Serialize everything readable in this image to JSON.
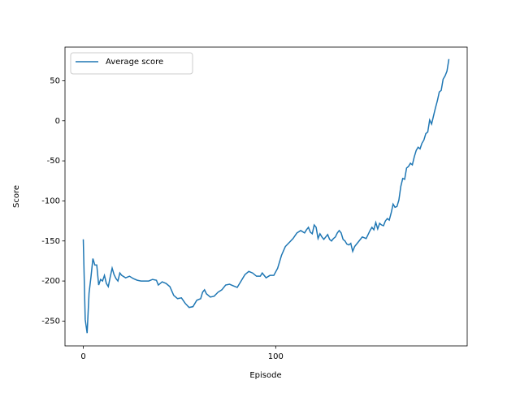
{
  "chart_data": {
    "type": "line",
    "x_label": "Episode",
    "y_label": "Score",
    "x": [
      0,
      1,
      2,
      3,
      4,
      5,
      6,
      7,
      8,
      9,
      10,
      11,
      12,
      13,
      14,
      15,
      16,
      17,
      18,
      19,
      20,
      22,
      24,
      26,
      28,
      30,
      34,
      36,
      38,
      39,
      41,
      43,
      45,
      47,
      49,
      51,
      53,
      55,
      57,
      59,
      61,
      62,
      63,
      64,
      66,
      68,
      70,
      72,
      74,
      76,
      78,
      80,
      82,
      84,
      86,
      88,
      90,
      92,
      93,
      95,
      97,
      99,
      101,
      103,
      105,
      107,
      109,
      111,
      113,
      115,
      116,
      117,
      118,
      119,
      120,
      121,
      122,
      123,
      124,
      125,
      126,
      127,
      128,
      129,
      130,
      131,
      132,
      133,
      134,
      135,
      136,
      137,
      138,
      139,
      140,
      141,
      143,
      145,
      147,
      149,
      150,
      151,
      152,
      153,
      154,
      155,
      156,
      157,
      158,
      159,
      160,
      161,
      162,
      163,
      164,
      165,
      166,
      167,
      168,
      169,
      170,
      171,
      172,
      173,
      174,
      175,
      176,
      177,
      178,
      179,
      180,
      181,
      182,
      183,
      184,
      185,
      186,
      187,
      188,
      189,
      190
    ],
    "series": [
      {
        "name": "Average score",
        "color": "#1f77b4",
        "values": [
          -148,
          -248,
          -265,
          -215,
          -195,
          -172,
          -180,
          -180,
          -205,
          -198,
          -200,
          -193,
          -203,
          -207,
          -195,
          -184,
          -192,
          -197,
          -200,
          -190,
          -193,
          -196,
          -194,
          -197,
          -199,
          -200,
          -200,
          -198,
          -199,
          -205,
          -201,
          -203,
          -207,
          -218,
          -222,
          -221,
          -228,
          -233,
          -232,
          -224,
          -222,
          -214,
          -211,
          -216,
          -220,
          -219,
          -214,
          -211,
          -205,
          -204,
          -206,
          -208,
          -200,
          -192,
          -188,
          -190,
          -194,
          -194,
          -190,
          -196,
          -193,
          -193,
          -184,
          -168,
          -157,
          -152,
          -147,
          -140,
          -137,
          -140,
          -136,
          -133,
          -139,
          -141,
          -130,
          -133,
          -147,
          -141,
          -145,
          -148,
          -145,
          -142,
          -148,
          -150,
          -147,
          -145,
          -140,
          -137,
          -140,
          -148,
          -150,
          -154,
          -155,
          -153,
          -163,
          -157,
          -151,
          -145,
          -147,
          -137,
          -133,
          -136,
          -127,
          -135,
          -128,
          -130,
          -131,
          -125,
          -122,
          -124,
          -115,
          -104,
          -108,
          -107,
          -99,
          -82,
          -72,
          -73,
          -59,
          -57,
          -53,
          -55,
          -45,
          -37,
          -33,
          -35,
          -28,
          -24,
          -16,
          -14,
          1,
          -4,
          6,
          16,
          25,
          36,
          38,
          52,
          56,
          62,
          77
        ]
      }
    ],
    "xlim": [
      -9.5,
      199.5
    ],
    "ylim": [
      -281,
      92
    ],
    "xticks": [
      0,
      100
    ],
    "yticks": [
      -250,
      -200,
      -150,
      -100,
      -50,
      0,
      50
    ],
    "legend": "upper left"
  }
}
